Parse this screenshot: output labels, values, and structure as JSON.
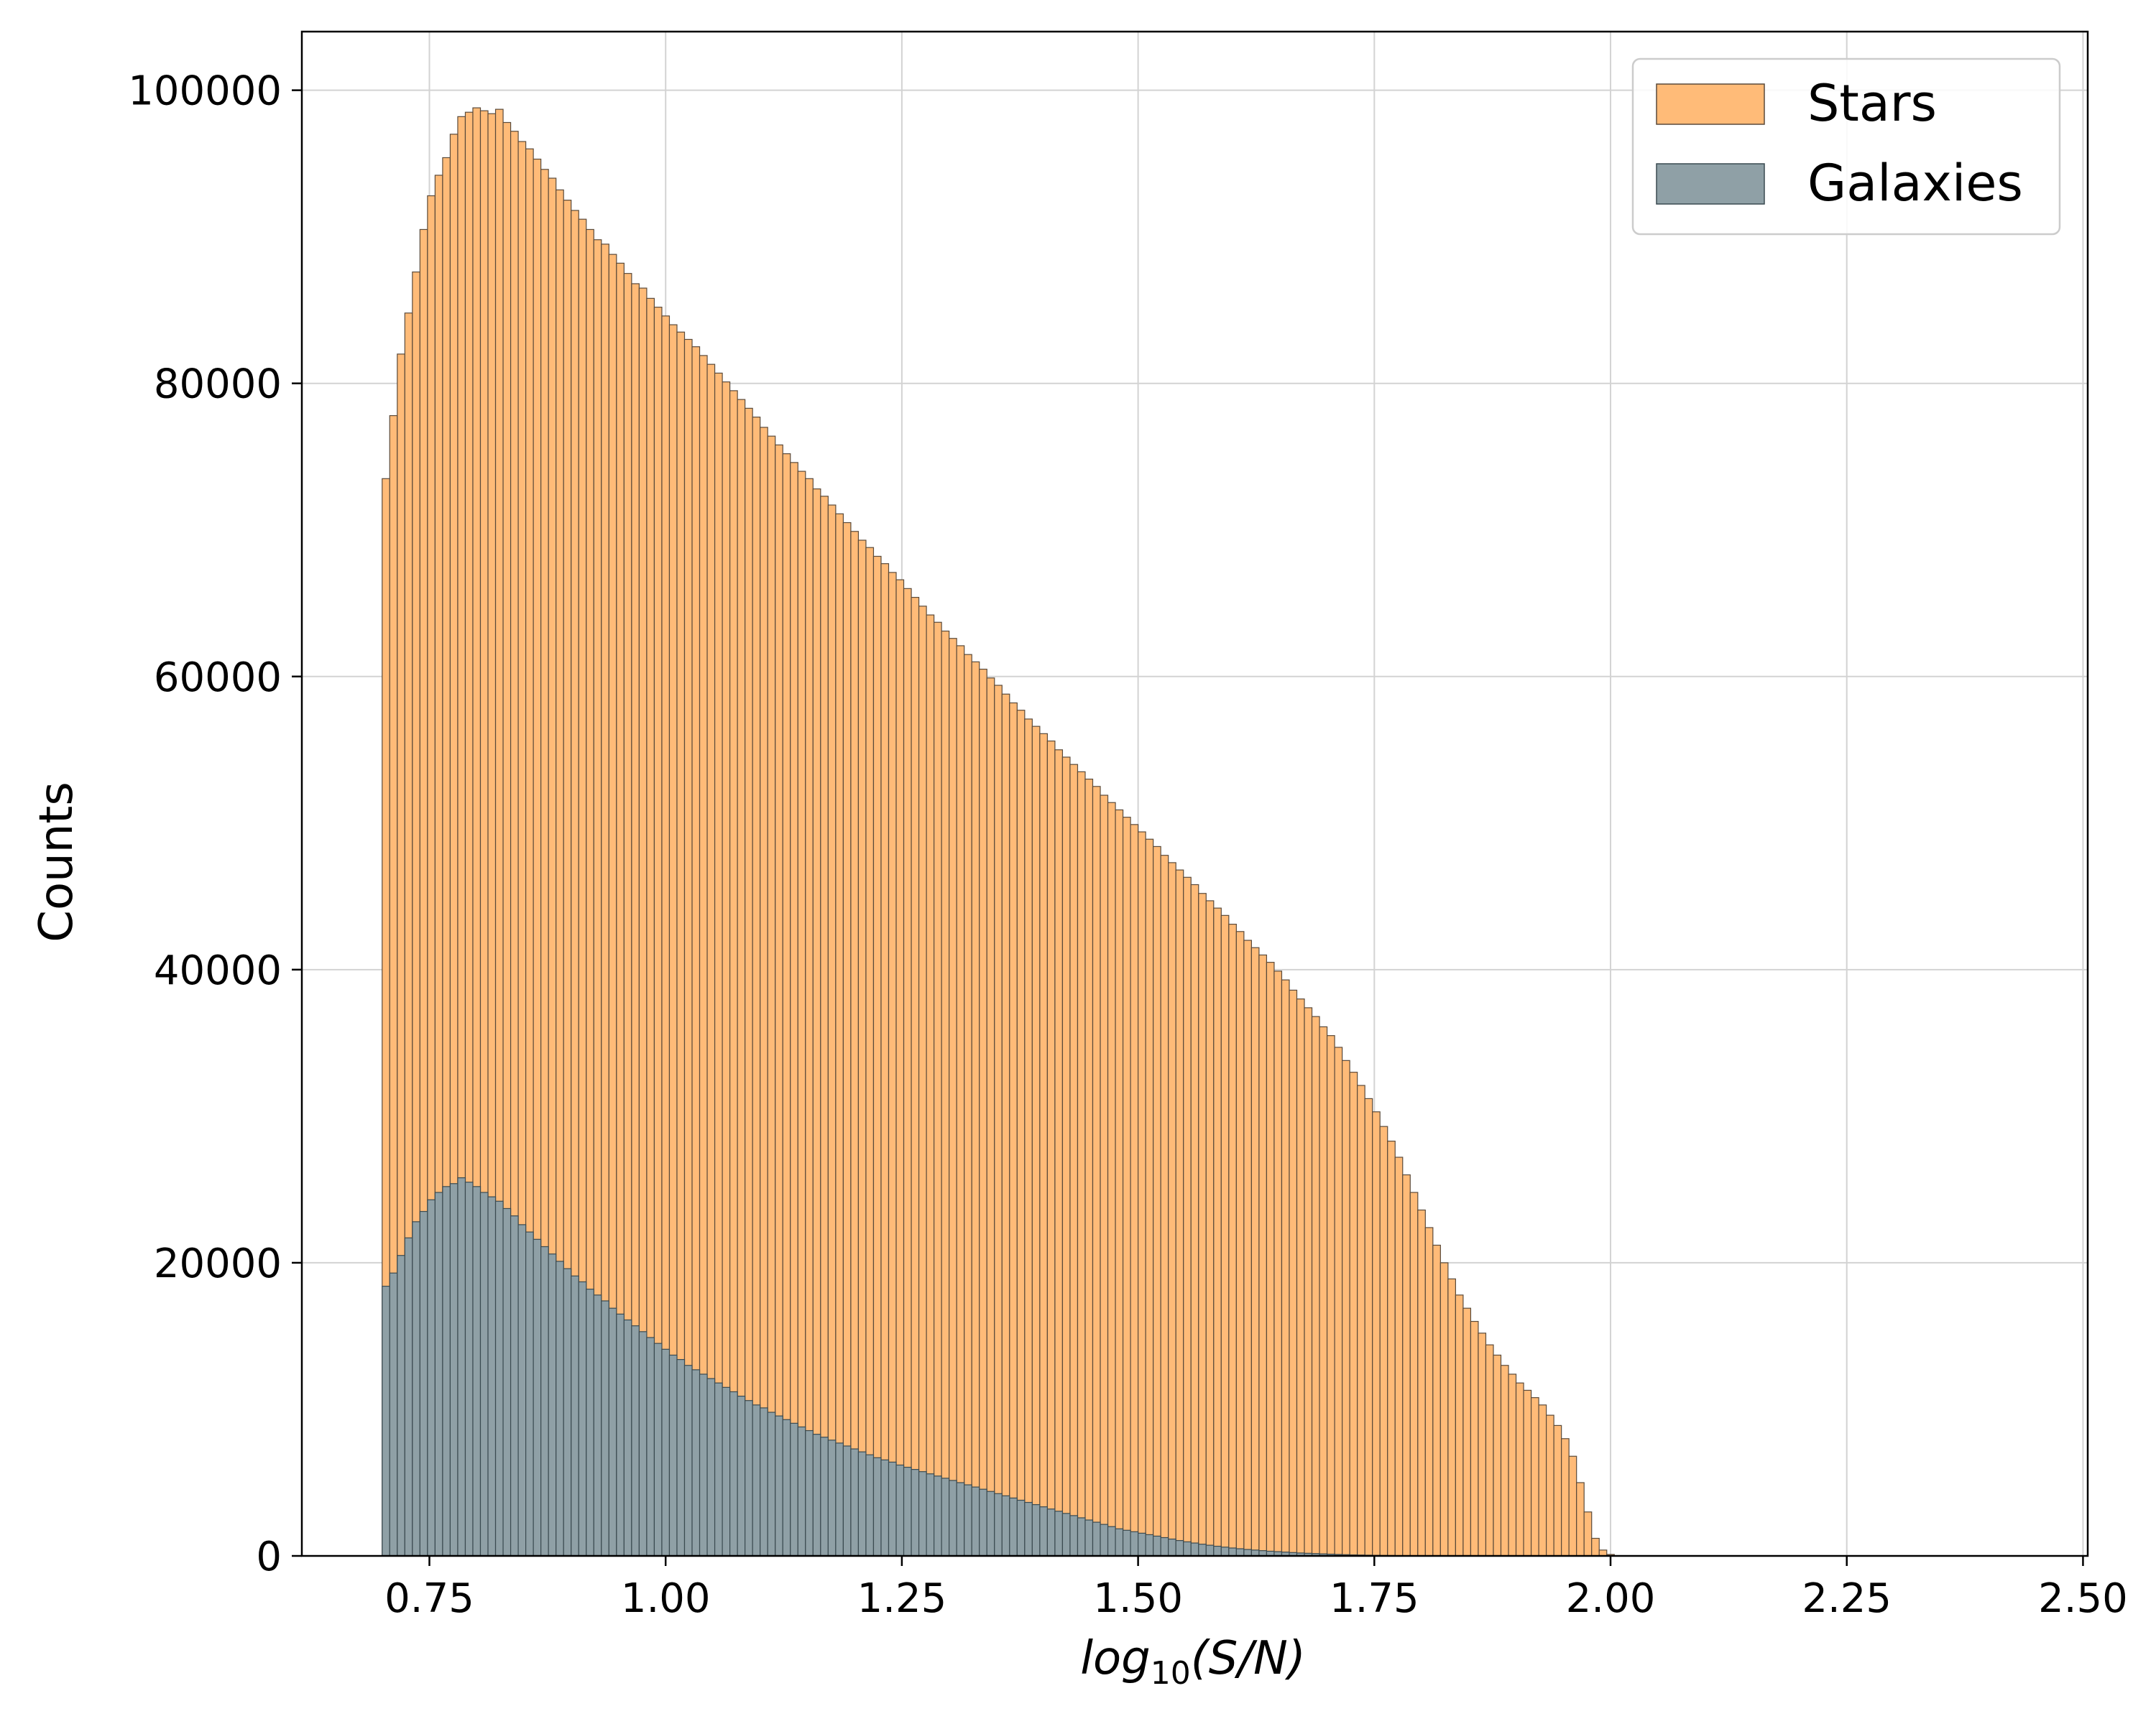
{
  "chart_data": {
    "type": "bar",
    "subtype": "overlaid histogram",
    "title": "",
    "xlabel": "log10(S/N)",
    "xlabel_parts": {
      "base": "log",
      "subscript": "10",
      "argument": "(S/N)"
    },
    "ylabel": "Counts",
    "xlim": [
      0.615,
      2.505
    ],
    "ylim": [
      0,
      104000
    ],
    "xticks": [
      0.75,
      1.0,
      1.25,
      1.5,
      1.75,
      2.0,
      2.25,
      2.5
    ],
    "xtick_labels": [
      "0.75",
      "1.00",
      "1.25",
      "1.50",
      "1.75",
      "2.00",
      "2.25",
      "2.50"
    ],
    "yticks": [
      0,
      20000,
      40000,
      60000,
      80000,
      100000
    ],
    "ytick_labels": [
      "0",
      "20000",
      "40000",
      "60000",
      "80000",
      "100000"
    ],
    "grid": true,
    "legend_position": "top-right",
    "bin_start": 0.7,
    "bin_width": 0.008,
    "series": [
      {
        "name": "Stars",
        "color": "#ffbb78",
        "edge_color": "#5a4a3a",
        "values": [
          73500,
          77800,
          82000,
          84800,
          87600,
          90500,
          92800,
          94200,
          95400,
          97000,
          98200,
          98500,
          98800,
          98600,
          98400,
          98700,
          97800,
          97200,
          96500,
          96000,
          95300,
          94600,
          94000,
          93200,
          92500,
          91800,
          91200,
          90500,
          89800,
          89500,
          88800,
          88200,
          87500,
          86800,
          86500,
          85800,
          85200,
          84600,
          84000,
          83500,
          83000,
          82500,
          81900,
          81300,
          80700,
          80100,
          79500,
          78900,
          78300,
          77700,
          77000,
          76400,
          75800,
          75200,
          74600,
          74000,
          73500,
          72800,
          72300,
          71700,
          71100,
          70500,
          69900,
          69300,
          68800,
          68200,
          67700,
          67100,
          66600,
          66000,
          65400,
          64800,
          64200,
          63700,
          63100,
          62600,
          62100,
          61500,
          61000,
          60500,
          59900,
          59400,
          58800,
          58200,
          57700,
          57100,
          56600,
          56100,
          55600,
          55000,
          54500,
          54000,
          53500,
          53000,
          52500,
          51900,
          51400,
          50900,
          50400,
          49900,
          49400,
          48900,
          48400,
          47800,
          47300,
          46800,
          46300,
          45800,
          45200,
          44700,
          44200,
          43700,
          43100,
          42600,
          42000,
          41500,
          41000,
          40500,
          39900,
          39300,
          38600,
          38000,
          37400,
          36800,
          36100,
          35500,
          34700,
          33800,
          33000,
          32100,
          31200,
          30300,
          29300,
          28300,
          27200,
          26000,
          24800,
          23600,
          22400,
          21200,
          20000,
          18900,
          17800,
          16900,
          16000,
          15200,
          14400,
          13700,
          13000,
          12400,
          11800,
          11300,
          10800,
          10300,
          9600,
          8900,
          8000,
          6800,
          5000,
          3000,
          1200,
          400,
          100
        ]
      },
      {
        "name": "Galaxies",
        "color": "#8fa0a6",
        "edge_color": "#3a4a50",
        "values": [
          18400,
          19300,
          20500,
          21700,
          22800,
          23500,
          24300,
          24800,
          25200,
          25400,
          25800,
          25500,
          25200,
          24800,
          24500,
          24200,
          23700,
          23200,
          22600,
          22100,
          21600,
          21100,
          20600,
          20100,
          19600,
          19100,
          18700,
          18200,
          17800,
          17400,
          16900,
          16500,
          16100,
          15700,
          15300,
          14900,
          14500,
          14100,
          13700,
          13400,
          13000,
          12700,
          12400,
          12100,
          11800,
          11500,
          11200,
          10900,
          10600,
          10300,
          10100,
          9800,
          9550,
          9300,
          9050,
          8800,
          8550,
          8300,
          8100,
          7900,
          7700,
          7500,
          7300,
          7100,
          6900,
          6700,
          6550,
          6400,
          6200,
          6050,
          5900,
          5750,
          5600,
          5450,
          5300,
          5150,
          5000,
          4850,
          4700,
          4550,
          4400,
          4250,
          4100,
          3950,
          3800,
          3650,
          3500,
          3350,
          3200,
          3050,
          2900,
          2750,
          2600,
          2450,
          2300,
          2150,
          2000,
          1850,
          1750,
          1650,
          1550,
          1450,
          1350,
          1250,
          1150,
          1050,
          960,
          880,
          800,
          730,
          660,
          600,
          540,
          490,
          440,
          400,
          360,
          320,
          290,
          260,
          230,
          200,
          180,
          160,
          140,
          120,
          100,
          85,
          70,
          60,
          50,
          40,
          32,
          25,
          20,
          15,
          10,
          7,
          5,
          3,
          2,
          1,
          0,
          0,
          0,
          0,
          0,
          0,
          0,
          0,
          0,
          0,
          0,
          0,
          0,
          0,
          0,
          0,
          0,
          0,
          0,
          0,
          0
        ]
      }
    ]
  }
}
